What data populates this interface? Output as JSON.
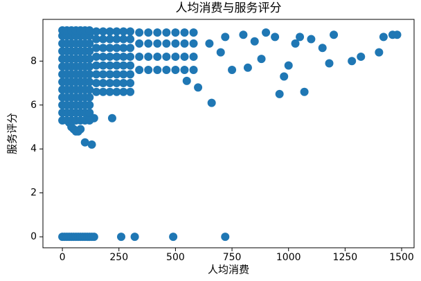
{
  "chart_data": {
    "type": "scatter",
    "title": "人均消费与服务评分",
    "x_label": "人均消费",
    "y_label": "服务评分",
    "color": "#1f77b4",
    "xlim": [
      -86,
      1555
    ],
    "ylim": [
      -0.5,
      9.9
    ],
    "xticks": [
      0,
      250,
      500,
      750,
      1000,
      1250,
      1500
    ],
    "yticks": [
      0,
      2,
      4,
      6,
      8
    ],
    "x": [
      0,
      10,
      20,
      30,
      40,
      50,
      60,
      70,
      80,
      90,
      100,
      110,
      120,
      130,
      140,
      260,
      320,
      490,
      720,
      30,
      40,
      50,
      60,
      70,
      80,
      100,
      130,
      120,
      140,
      220,
      0,
      0,
      0,
      0,
      0,
      0,
      0,
      0,
      0,
      0,
      0,
      0,
      0,
      20,
      20,
      20,
      20,
      20,
      20,
      20,
      20,
      20,
      20,
      20,
      20,
      20,
      40,
      40,
      40,
      40,
      40,
      40,
      40,
      40,
      40,
      40,
      40,
      40,
      40,
      60,
      60,
      60,
      60,
      60,
      60,
      60,
      60,
      60,
      60,
      60,
      60,
      60,
      80,
      80,
      80,
      80,
      80,
      80,
      80,
      80,
      80,
      80,
      80,
      80,
      80,
      100,
      100,
      100,
      100,
      100,
      100,
      100,
      100,
      100,
      100,
      100,
      100,
      100,
      120,
      120,
      120,
      120,
      120,
      120,
      120,
      120,
      120,
      120,
      120,
      120,
      120,
      150,
      150,
      150,
      150,
      150,
      150,
      150,
      150,
      180,
      180,
      180,
      180,
      180,
      180,
      180,
      180,
      210,
      210,
      210,
      210,
      210,
      210,
      210,
      210,
      240,
      240,
      240,
      240,
      240,
      240,
      240,
      240,
      270,
      270,
      270,
      270,
      270,
      270,
      270,
      270,
      300,
      300,
      300,
      300,
      300,
      300,
      300,
      300,
      340,
      340,
      340,
      340,
      380,
      380,
      380,
      380,
      420,
      420,
      420,
      420,
      460,
      460,
      460,
      460,
      500,
      500,
      500,
      500,
      540,
      540,
      540,
      540,
      580,
      580,
      580,
      580,
      660,
      700,
      750,
      800,
      850,
      900,
      960,
      1000,
      1050,
      1070,
      1100,
      1150,
      1180,
      1200,
      1280,
      1320,
      1400,
      1420,
      1460,
      1480,
      980,
      1030,
      940,
      880,
      820,
      720,
      650,
      600,
      550
    ],
    "values": [
      0,
      0,
      0,
      0,
      0,
      0,
      0,
      0,
      0,
      0,
      0,
      0,
      0,
      0,
      0,
      0,
      0,
      0,
      0,
      5.2,
      5.0,
      4.9,
      4.8,
      4.8,
      4.9,
      4.3,
      4.2,
      5.4,
      5.4,
      5.4,
      5.3,
      5.65,
      6.0,
      6.35,
      6.7,
      7.05,
      7.4,
      7.75,
      8.1,
      8.45,
      8.8,
      9.15,
      9.4,
      5.3,
      5.65,
      6.0,
      6.35,
      6.7,
      7.05,
      7.4,
      7.75,
      8.1,
      8.45,
      8.8,
      9.15,
      9.4,
      5.3,
      5.65,
      6.0,
      6.35,
      6.7,
      7.05,
      7.4,
      7.75,
      8.1,
      8.45,
      8.8,
      9.15,
      9.4,
      5.3,
      5.65,
      6.0,
      6.35,
      6.7,
      7.05,
      7.4,
      7.75,
      8.1,
      8.45,
      8.8,
      9.15,
      9.4,
      5.3,
      5.65,
      6.0,
      6.35,
      6.7,
      7.05,
      7.4,
      7.75,
      8.1,
      8.45,
      8.8,
      9.15,
      9.4,
      5.3,
      5.65,
      6.0,
      6.35,
      6.7,
      7.05,
      7.4,
      7.75,
      8.1,
      8.45,
      8.8,
      9.15,
      9.4,
      5.3,
      5.65,
      6.0,
      6.35,
      6.7,
      7.05,
      7.4,
      7.75,
      8.1,
      8.45,
      8.8,
      9.15,
      9.4,
      6.6,
      7.0,
      7.4,
      7.8,
      8.2,
      8.6,
      9.0,
      9.35,
      6.6,
      7.0,
      7.4,
      7.8,
      8.2,
      8.6,
      9.0,
      9.35,
      6.6,
      7.0,
      7.4,
      7.8,
      8.2,
      8.6,
      9.0,
      9.35,
      6.6,
      7.0,
      7.4,
      7.8,
      8.2,
      8.6,
      9.0,
      9.35,
      6.6,
      7.0,
      7.4,
      7.8,
      8.2,
      8.6,
      9.0,
      9.35,
      6.6,
      7.0,
      7.4,
      7.8,
      8.2,
      8.6,
      9.0,
      9.35,
      7.6,
      8.2,
      8.8,
      9.3,
      7.6,
      8.2,
      8.8,
      9.3,
      7.6,
      8.2,
      8.8,
      9.3,
      7.6,
      8.2,
      8.8,
      9.3,
      7.6,
      8.2,
      8.8,
      9.3,
      7.6,
      8.2,
      8.8,
      9.3,
      7.6,
      8.2,
      8.8,
      9.3,
      6.1,
      8.4,
      7.6,
      9.2,
      8.9,
      9.3,
      6.5,
      7.8,
      9.1,
      6.6,
      9.0,
      8.6,
      7.9,
      9.2,
      8.0,
      8.2,
      8.4,
      9.1,
      9.2,
      9.2,
      7.3,
      8.8,
      9.1,
      8.1,
      7.7,
      9.1,
      8.8,
      6.8,
      7.1
    ]
  }
}
